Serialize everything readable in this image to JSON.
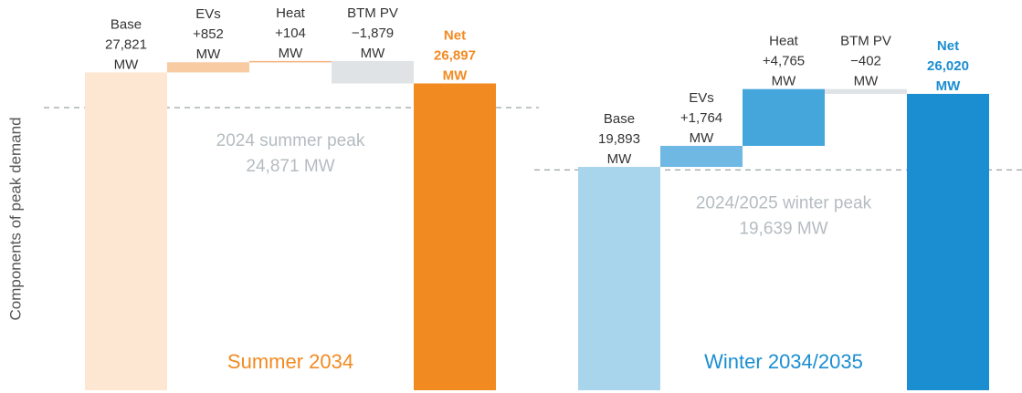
{
  "y_label": "Components of peak demand",
  "chart_data": [
    {
      "type": "waterfall",
      "title": "Summer 2034",
      "color": "#f28a22",
      "categories": [
        "Base",
        "EVs",
        "Heat",
        "BTM PV",
        "Net"
      ],
      "values": [
        27821,
        852,
        104,
        -1879,
        26897
      ],
      "value_labels": [
        "27,821",
        "+852",
        "+104",
        "−1,879",
        "26,897"
      ],
      "unit": "MW",
      "totals": [
        true,
        false,
        false,
        false,
        true
      ],
      "colors": [
        "#fde6d2",
        "#f9cba3",
        "#f7b27a",
        "#dfe3e5",
        "#f28a22"
      ],
      "ylim": [
        1150,
        29000
      ],
      "reference": {
        "label": "2024 summer peak",
        "value": 24871,
        "value_label": "24,871 MW"
      }
    },
    {
      "type": "waterfall",
      "title": "Winter 2034/2035",
      "color": "#1a8ed0",
      "categories": [
        "Base",
        "EVs",
        "Heat",
        "BTM PV",
        "Net"
      ],
      "values": [
        19893,
        1764,
        4765,
        -402,
        26020
      ],
      "value_labels": [
        "19,893",
        "+1,764",
        "+4,765",
        "−402",
        "26,020"
      ],
      "unit": "MW",
      "totals": [
        true,
        false,
        false,
        false,
        true
      ],
      "colors": [
        "#a8d4ec",
        "#6fb8e3",
        "#45a6dc",
        "#dfe3e5",
        "#1a8ed0"
      ],
      "ylim": [
        1150,
        29000
      ],
      "reference": {
        "label": "2024/2025 winter peak",
        "value": 19639,
        "value_label": "19,639 MW"
      }
    }
  ]
}
